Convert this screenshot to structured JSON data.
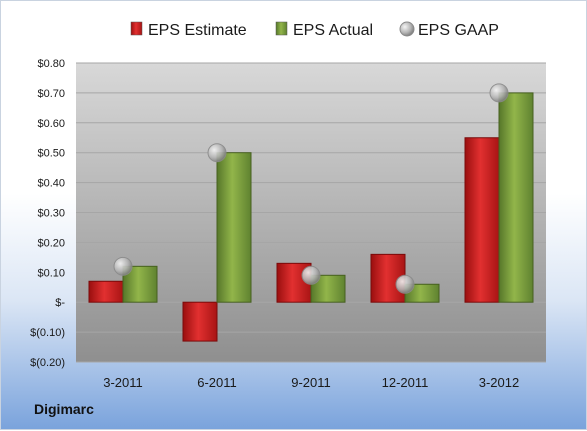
{
  "brand": "Digimarc",
  "colors": {
    "estimate": "#d42020",
    "actual": "#7fa23a",
    "gaap": "#b9b9b9"
  },
  "chart_data": {
    "type": "bar",
    "categories": [
      "3-2011",
      "6-2011",
      "9-2011",
      "12-2011",
      "3-2012"
    ],
    "series": [
      {
        "name": "EPS Estimate",
        "type": "bar",
        "values": [
          0.07,
          -0.13,
          0.13,
          0.16,
          0.55
        ]
      },
      {
        "name": "EPS Actual",
        "type": "bar",
        "values": [
          0.12,
          0.5,
          0.09,
          0.06,
          0.7
        ]
      },
      {
        "name": "EPS GAAP",
        "type": "scatter",
        "values": [
          0.12,
          0.5,
          0.09,
          0.06,
          0.7
        ]
      }
    ],
    "ylim": [
      -0.2,
      0.8
    ],
    "yticks": [
      0.8,
      0.7,
      0.6,
      0.5,
      0.4,
      0.3,
      0.2,
      0.1,
      0.0,
      -0.1,
      -0.2
    ],
    "ytick_labels": [
      "$0.80",
      "$0.70",
      "$0.60",
      "$0.50",
      "$0.40",
      "$0.30",
      "$0.20",
      "$0.10",
      "$-",
      "$(0.10)",
      "$(0.20)"
    ],
    "legend": "top",
    "grid": true
  }
}
